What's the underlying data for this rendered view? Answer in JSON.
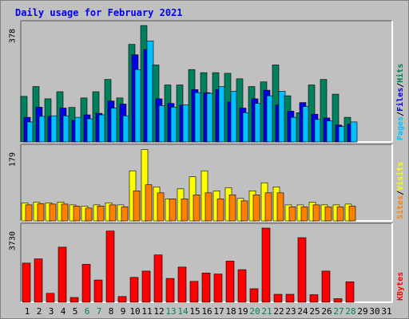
{
  "title": "Daily usage for February 2021",
  "colors": {
    "hits": "#00805c",
    "files": "#0000e6",
    "pages": "#00c0ff",
    "visits": "#ffff00",
    "sites": "#ff8000",
    "kbytes": "#ff0000",
    "weekend_day": "#00805c",
    "weekday_day": "#000000",
    "panel_bg": "#c0c0c0",
    "title": "#0000ee"
  },
  "chart_data": [
    {
      "type": "bar",
      "panel": "hits-files-pages",
      "max_label": "378",
      "legend": [
        {
          "key": "pages",
          "label": "Pages"
        },
        {
          "key": "sep1",
          "label": "/"
        },
        {
          "key": "files",
          "label": "Files"
        },
        {
          "key": "sep2",
          "label": "/"
        },
        {
          "key": "hits",
          "label": "Hits"
        }
      ],
      "ylim": [
        0,
        378
      ],
      "categories": [
        "1",
        "2",
        "3",
        "4",
        "5",
        "6",
        "7",
        "8",
        "9",
        "10",
        "11",
        "12",
        "13",
        "14",
        "15",
        "16",
        "17",
        "18",
        "19",
        "20",
        "21",
        "22",
        "23",
        "24",
        "25",
        "26",
        "27",
        "28",
        "29",
        "30",
        "31"
      ],
      "series": [
        {
          "name": "Hits",
          "key": "hits",
          "values": [
            148,
            180,
            140,
            163,
            112,
            143,
            163,
            203,
            143,
            317,
            378,
            250,
            185,
            185,
            235,
            225,
            225,
            223,
            205,
            180,
            195,
            250,
            150,
            95,
            185,
            203,
            155,
            80,
            0,
            0,
            0
          ]
        },
        {
          "name": "Files",
          "key": "files",
          "values": [
            80,
            113,
            83,
            110,
            70,
            88,
            93,
            133,
            123,
            283,
            300,
            140,
            125,
            120,
            170,
            160,
            170,
            130,
            110,
            140,
            168,
            120,
            100,
            128,
            90,
            78,
            55,
            58,
            0,
            0,
            0
          ]
        },
        {
          "name": "Pages",
          "key": "pages",
          "values": [
            65,
            83,
            85,
            85,
            80,
            75,
            88,
            110,
            85,
            235,
            328,
            118,
            113,
            120,
            160,
            158,
            180,
            165,
            95,
            125,
            150,
            165,
            80,
            115,
            73,
            68,
            50,
            65,
            0,
            0,
            0
          ]
        }
      ]
    },
    {
      "type": "bar",
      "panel": "visits-sites",
      "max_label": "179",
      "legend": [
        {
          "key": "sites",
          "label": "Sites"
        },
        {
          "key": "sep",
          "label": "/"
        },
        {
          "key": "visits",
          "label": "Visits"
        }
      ],
      "ylim": [
        0,
        179
      ],
      "categories": [
        "1",
        "2",
        "3",
        "4",
        "5",
        "6",
        "7",
        "8",
        "9",
        "10",
        "11",
        "12",
        "13",
        "14",
        "15",
        "16",
        "17",
        "18",
        "19",
        "20",
        "21",
        "22",
        "23",
        "24",
        "25",
        "26",
        "27",
        "28",
        "29",
        "30",
        "31"
      ],
      "series": [
        {
          "name": "Visits",
          "key": "visits",
          "values": [
            45,
            47,
            45,
            47,
            40,
            37,
            40,
            45,
            40,
            125,
            178,
            85,
            55,
            80,
            110,
            125,
            75,
            83,
            56,
            75,
            95,
            85,
            40,
            40,
            47,
            40,
            40,
            42,
            0,
            0,
            0
          ]
        },
        {
          "name": "Sites",
          "key": "sites",
          "values": [
            40,
            43,
            42,
            42,
            37,
            32,
            37,
            40,
            35,
            75,
            90,
            70,
            55,
            55,
            65,
            70,
            55,
            65,
            50,
            65,
            70,
            70,
            35,
            35,
            40,
            35,
            35,
            37,
            0,
            0,
            0
          ]
        }
      ]
    },
    {
      "type": "bar",
      "panel": "kbytes",
      "max_label": "3730",
      "legend": [
        {
          "key": "kbytes",
          "label": "KBytes"
        }
      ],
      "ylim": [
        0,
        3730
      ],
      "categories": [
        "1",
        "2",
        "3",
        "4",
        "5",
        "6",
        "7",
        "8",
        "9",
        "10",
        "11",
        "12",
        "13",
        "14",
        "15",
        "16",
        "17",
        "18",
        "19",
        "20",
        "21",
        "22",
        "23",
        "24",
        "25",
        "26",
        "27",
        "28",
        "29",
        "30",
        "31"
      ],
      "series": [
        {
          "name": "KBytes",
          "key": "kbytes",
          "values": [
            1970,
            2180,
            450,
            2770,
            240,
            1910,
            1120,
            3580,
            290,
            1250,
            1570,
            2380,
            1200,
            1770,
            1050,
            1470,
            1420,
            2070,
            1640,
            680,
            3730,
            400,
            400,
            3250,
            380,
            1570,
            180,
            1030,
            0,
            0,
            0
          ]
        }
      ]
    }
  ],
  "days": [
    {
      "label": "1",
      "weekend": false
    },
    {
      "label": "2",
      "weekend": false
    },
    {
      "label": "3",
      "weekend": false
    },
    {
      "label": "4",
      "weekend": false
    },
    {
      "label": "5",
      "weekend": false
    },
    {
      "label": "6",
      "weekend": true
    },
    {
      "label": "7",
      "weekend": true
    },
    {
      "label": "8",
      "weekend": false
    },
    {
      "label": "9",
      "weekend": false
    },
    {
      "label": "10",
      "weekend": false
    },
    {
      "label": "11",
      "weekend": false
    },
    {
      "label": "12",
      "weekend": false
    },
    {
      "label": "13",
      "weekend": true
    },
    {
      "label": "14",
      "weekend": true
    },
    {
      "label": "15",
      "weekend": false
    },
    {
      "label": "16",
      "weekend": false
    },
    {
      "label": "17",
      "weekend": false
    },
    {
      "label": "18",
      "weekend": false
    },
    {
      "label": "19",
      "weekend": false
    },
    {
      "label": "20",
      "weekend": true
    },
    {
      "label": "21",
      "weekend": true
    },
    {
      "label": "22",
      "weekend": false
    },
    {
      "label": "23",
      "weekend": false
    },
    {
      "label": "24",
      "weekend": false
    },
    {
      "label": "25",
      "weekend": false
    },
    {
      "label": "26",
      "weekend": false
    },
    {
      "label": "27",
      "weekend": true
    },
    {
      "label": "28",
      "weekend": true
    },
    {
      "label": "29",
      "weekend": false
    },
    {
      "label": "30",
      "weekend": false
    },
    {
      "label": "31",
      "weekend": false
    }
  ]
}
